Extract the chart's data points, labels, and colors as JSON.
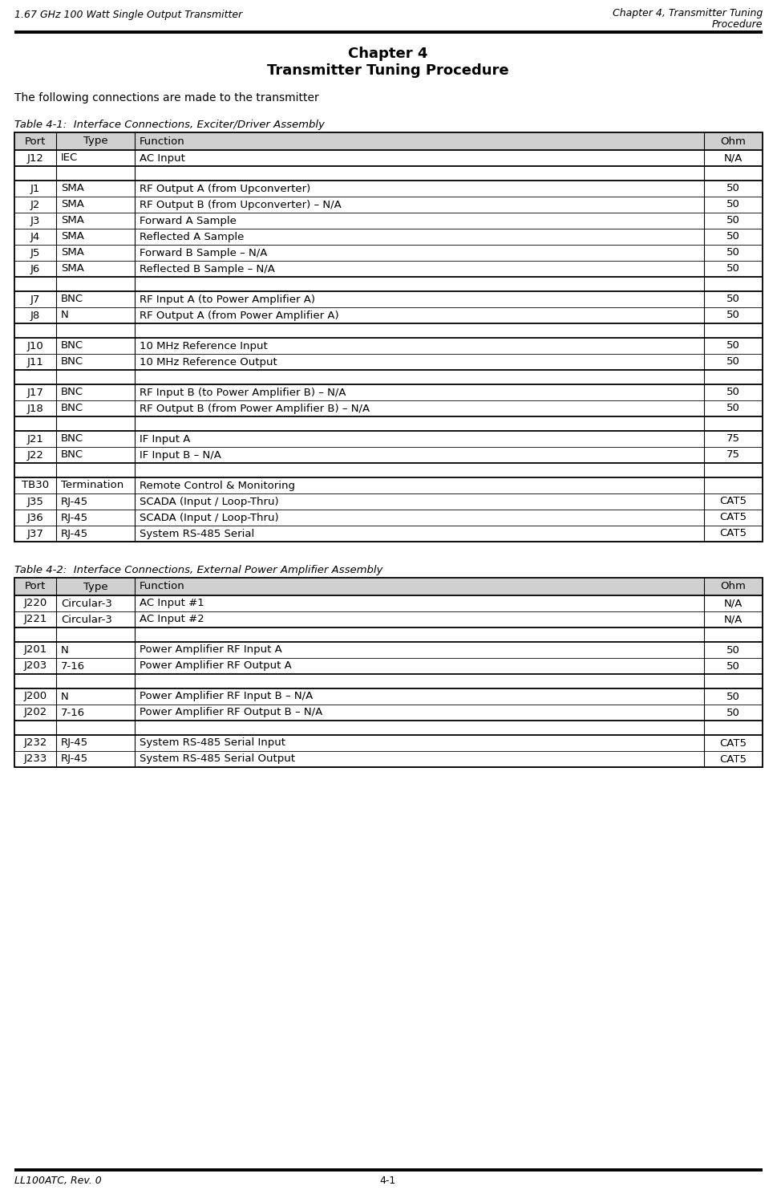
{
  "header_left": "1.67 GHz 100 Watt Single Output Transmitter",
  "header_right_line1": "Chapter 4, Transmitter Tuning",
  "header_right_line2": "Procedure",
  "footer_left": "LL100ATC, Rev. 0",
  "footer_center": "4-1",
  "chapter_title": "Chapter 4",
  "chapter_subtitle": "Transmitter Tuning Procedure",
  "intro_text": "The following connections are made to the transmitter",
  "table1_title": "Table 4-1:  Interface Connections, Exciter/Driver Assembly",
  "table1_headers": [
    "Port",
    "Type",
    "Function",
    "Ohm"
  ],
  "table1_rows": [
    [
      "J12",
      "IEC",
      "AC Input",
      "N/A"
    ],
    [
      "",
      "",
      "",
      ""
    ],
    [
      "J1",
      "SMA",
      "RF Output A (from Upconverter)",
      "50"
    ],
    [
      "J2",
      "SMA",
      "RF Output B (from Upconverter) – N/A",
      "50"
    ],
    [
      "J3",
      "SMA",
      "Forward A Sample",
      "50"
    ],
    [
      "J4",
      "SMA",
      "Reflected A Sample",
      "50"
    ],
    [
      "J5",
      "SMA",
      "Forward B Sample – N/A",
      "50"
    ],
    [
      "J6",
      "SMA",
      "Reflected B Sample – N/A",
      "50"
    ],
    [
      "",
      "",
      "",
      ""
    ],
    [
      "J7",
      "BNC",
      "RF Input A (to Power Amplifier A)",
      "50"
    ],
    [
      "J8",
      "N",
      "RF Output A (from Power Amplifier A)",
      "50"
    ],
    [
      "",
      "",
      "",
      ""
    ],
    [
      "J10",
      "BNC",
      "10 MHz Reference Input",
      "50"
    ],
    [
      "J11",
      "BNC",
      "10 MHz Reference Output",
      "50"
    ],
    [
      "",
      "",
      "",
      ""
    ],
    [
      "J17",
      "BNC",
      "RF Input B (to Power Amplifier B) – N/A",
      "50"
    ],
    [
      "J18",
      "BNC",
      "RF Output B (from Power Amplifier B) – N/A",
      "50"
    ],
    [
      "",
      "",
      "",
      ""
    ],
    [
      "J21",
      "BNC",
      "IF Input A",
      "75"
    ],
    [
      "J22",
      "BNC",
      "IF Input B – N/A",
      "75"
    ],
    [
      "",
      "",
      "",
      ""
    ],
    [
      "TB30",
      "Termination",
      "Remote Control & Monitoring",
      ""
    ],
    [
      "J35",
      "RJ-45",
      "SCADA (Input / Loop-Thru)",
      "CAT5"
    ],
    [
      "J36",
      "RJ-45",
      "SCADA (Input / Loop-Thru)",
      "CAT5"
    ],
    [
      "J37",
      "RJ-45",
      "System RS-485 Serial",
      "CAT5"
    ]
  ],
  "table1_thick_after": [
    0,
    1,
    7,
    8,
    10,
    11,
    13,
    14,
    16,
    17,
    19,
    20
  ],
  "table2_title": "Table 4-2:  Interface Connections, External Power Amplifier Assembly",
  "table2_headers": [
    "Port",
    "Type",
    "Function",
    "Ohm"
  ],
  "table2_rows": [
    [
      "J220",
      "Circular-3",
      "AC Input #1",
      "N/A"
    ],
    [
      "J221",
      "Circular-3",
      "AC Input #2",
      "N/A"
    ],
    [
      "",
      "",
      "",
      ""
    ],
    [
      "J201",
      "N",
      "Power Amplifier RF Input A",
      "50"
    ],
    [
      "J203",
      "7-16",
      "Power Amplifier RF Output A",
      "50"
    ],
    [
      "",
      "",
      "",
      ""
    ],
    [
      "J200",
      "N",
      "Power Amplifier RF Input B – N/A",
      "50"
    ],
    [
      "J202",
      "7-16",
      "Power Amplifier RF Output B – N/A",
      "50"
    ],
    [
      "",
      "",
      "",
      ""
    ],
    [
      "J232",
      "RJ-45",
      "System RS-485 Serial Input",
      "CAT5"
    ],
    [
      "J233",
      "RJ-45",
      "System RS-485 Serial Output",
      "CAT5"
    ]
  ],
  "table2_thick_after": [
    1,
    2,
    4,
    5,
    7,
    8
  ],
  "bg_color": "#ffffff",
  "table_header_bg": "#d0d0d0",
  "border_color": "#000000"
}
